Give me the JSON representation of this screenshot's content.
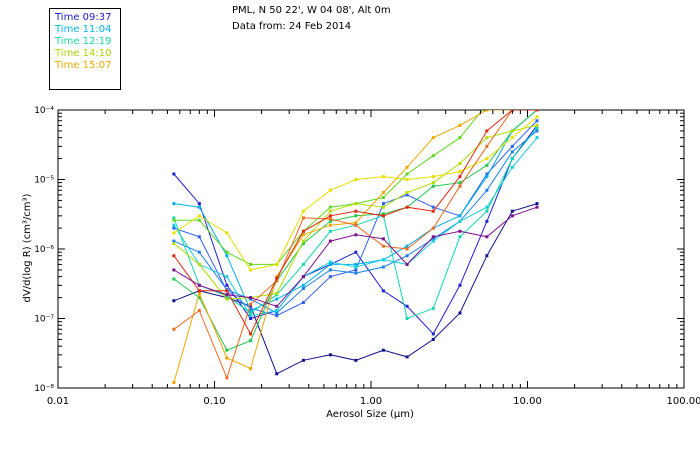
{
  "header": {
    "location": "PML, N 50 22', W 04 08', Alt 0m",
    "date": "Data from: 24 Feb 2014"
  },
  "legend": [
    {
      "label": "Time 09:37",
      "color": "#1a1ad0"
    },
    {
      "label": "Time 11:04",
      "color": "#00b8e8"
    },
    {
      "label": "Time 12:19",
      "color": "#18d8a0"
    },
    {
      "label": "Time 14:10",
      "color": "#a8d800"
    },
    {
      "label": "Time 15:07",
      "color": "#f0a800"
    }
  ],
  "chart_data": {
    "type": "line",
    "title": "PML, N 50 22', W 04 08', Alt 0m",
    "subtitle": "Data from: 24 Feb 2014",
    "xlabel": "Aerosol Size (µm)",
    "ylabel": "dV/d(log R) (cm³/cm³)",
    "xscale": "log",
    "yscale": "log",
    "xlim": [
      0.01,
      100
    ],
    "ylim": [
      1e-08,
      0.0001
    ],
    "xticks": [
      {
        "value": 0.01,
        "label": "0.01"
      },
      {
        "value": 0.1,
        "label": "0.10"
      },
      {
        "value": 1,
        "label": "1.00"
      },
      {
        "value": 10,
        "label": "10.00"
      },
      {
        "value": 100,
        "label": "100.00"
      }
    ],
    "yticks": [
      {
        "value": 1e-08,
        "label": "10⁻⁸"
      },
      {
        "value": 1e-07,
        "label": "10⁻⁷"
      },
      {
        "value": 1e-06,
        "label": "10⁻⁶"
      },
      {
        "value": 1e-05,
        "label": "10⁻⁵"
      },
      {
        "value": 0.0001,
        "label": "10⁻⁴"
      }
    ],
    "x": [
      0.055,
      0.08,
      0.12,
      0.17,
      0.25,
      0.37,
      0.55,
      0.8,
      1.2,
      1.7,
      2.5,
      3.7,
      5.5,
      8.0,
      11.5
    ],
    "series": [
      {
        "name": "s1",
        "color": "#10108c",
        "values": [
          1.8e-07,
          2.5e-07,
          2e-07,
          1.5e-07,
          1.6e-08,
          2.5e-08,
          3e-08,
          2.5e-08,
          3.5e-08,
          2.8e-08,
          5e-08,
          1.2e-07,
          8e-07,
          3.5e-06,
          4.5e-06
        ]
      },
      {
        "name": "s2",
        "color": "#2020d8",
        "values": [
          1.2e-05,
          4.5e-06,
          3e-07,
          1e-07,
          1.3e-07,
          4e-07,
          6e-07,
          9e-07,
          2.5e-07,
          1.5e-07,
          6e-08,
          3e-07,
          2.5e-06,
          2e-05,
          6e-05
        ]
      },
      {
        "name": "s3",
        "color": "#3060f0",
        "values": [
          2e-06,
          1.5e-06,
          2.5e-07,
          1.4e-07,
          1.1e-07,
          1.7e-07,
          4e-07,
          5e-07,
          4.5e-06,
          6e-06,
          4e-06,
          3e-06,
          1.2e-05,
          3e-05,
          7e-05
        ]
      },
      {
        "name": "s4",
        "color": "#1a80f0",
        "values": [
          1.3e-06,
          9e-07,
          2.6e-07,
          1.9e-07,
          1.2e-07,
          2.7e-07,
          5e-07,
          4.5e-07,
          5.5e-07,
          8e-07,
          1.4e-06,
          2.5e-06,
          7e-06,
          2.5e-05,
          5e-05
        ]
      },
      {
        "name": "s5",
        "color": "#00b0e8",
        "values": [
          4.5e-06,
          4e-06,
          8e-07,
          1.3e-07,
          1.9e-07,
          3e-07,
          6e-07,
          6e-07,
          7e-07,
          1.1e-06,
          2e-06,
          3e-06,
          1.1e-05,
          5e-05,
          0.0001
        ]
      },
      {
        "name": "s6",
        "color": "#18d0e0",
        "values": [
          2.2e-06,
          6e-07,
          4e-07,
          1.1e-07,
          1.3e-07,
          4e-07,
          6.5e-07,
          5.5e-07,
          7e-07,
          6e-07,
          1.3e-06,
          2.5e-06,
          4e-06,
          1.5e-05,
          4e-05
        ]
      },
      {
        "name": "s7",
        "color": "#10d8b0",
        "values": [
          2.8e-06,
          3e-07,
          2.1e-07,
          1.2e-07,
          2.2e-07,
          6e-07,
          1.8e-06,
          2.2e-06,
          3e-06,
          1e-07,
          1.4e-07,
          1.5e-06,
          3.5e-06,
          2e-05,
          5.5e-05
        ]
      },
      {
        "name": "s8",
        "color": "#20c850",
        "values": [
          3.7e-07,
          2e-07,
          3.5e-08,
          4.8e-08,
          3.5e-07,
          1.2e-06,
          2.5e-06,
          3e-06,
          3.2e-06,
          4e-06,
          8e-06,
          9e-06,
          1.6e-05,
          5e-05,
          0.0001
        ]
      },
      {
        "name": "s9",
        "color": "#60d820",
        "values": [
          2.6e-06,
          2.6e-06,
          9e-07,
          6e-07,
          6e-07,
          1.8e-06,
          4e-06,
          4.5e-06,
          5.5e-06,
          1.2e-05,
          2.2e-05,
          4e-05,
          0.00012,
          0.0001,
          0.0001
        ]
      },
      {
        "name": "s10",
        "color": "#b0e000",
        "values": [
          1.2e-06,
          6e-07,
          1.9e-07,
          2e-07,
          2.3e-07,
          1.3e-06,
          3.5e-06,
          4.5e-06,
          4e-06,
          6.5e-06,
          9e-06,
          1.7e-05,
          4e-05,
          5e-05,
          6e-05
        ]
      },
      {
        "name": "s11",
        "color": "#e8e000",
        "values": [
          1.7e-06,
          3e-06,
          1.7e-06,
          5e-07,
          6e-07,
          3.5e-06,
          7e-06,
          1e-05,
          1.1e-05,
          1e-05,
          1.1e-05,
          1.3e-05,
          2e-05,
          4e-05,
          8e-05
        ]
      },
      {
        "name": "s12",
        "color": "#f0a800",
        "values": [
          1.2e-08,
          2.3e-07,
          2.7e-08,
          1.9e-08,
          4e-07,
          1.6e-06,
          2.2e-06,
          2.4e-06,
          6.5e-06,
          1.5e-05,
          4e-05,
          6e-05,
          0.0001,
          0.0001,
          0.0001
        ]
      },
      {
        "name": "s13",
        "color": "#f06820",
        "values": [
          7e-08,
          1.3e-07,
          1.4e-08,
          1.6e-07,
          3.5e-07,
          2.8e-06,
          2.7e-06,
          2.2e-06,
          1.1e-06,
          1e-06,
          2e-06,
          8e-06,
          3e-05,
          0.0001,
          0.0001
        ]
      },
      {
        "name": "s14",
        "color": "#e02810",
        "values": [
          8e-07,
          2.5e-07,
          2.5e-07,
          6e-08,
          3.8e-07,
          1.8e-06,
          3e-06,
          3.5e-06,
          3e-06,
          4e-06,
          3.5e-06,
          1.1e-05,
          5e-05,
          0.0001,
          0.0001
        ]
      },
      {
        "name": "s15",
        "color": "#801090",
        "values": [
          5e-07,
          3e-07,
          2.2e-07,
          2e-07,
          1.5e-07,
          4e-07,
          1.3e-06,
          1.6e-06,
          1.4e-06,
          6e-07,
          1.5e-06,
          1.8e-06,
          1.5e-06,
          3e-06,
          4e-06
        ]
      }
    ]
  }
}
